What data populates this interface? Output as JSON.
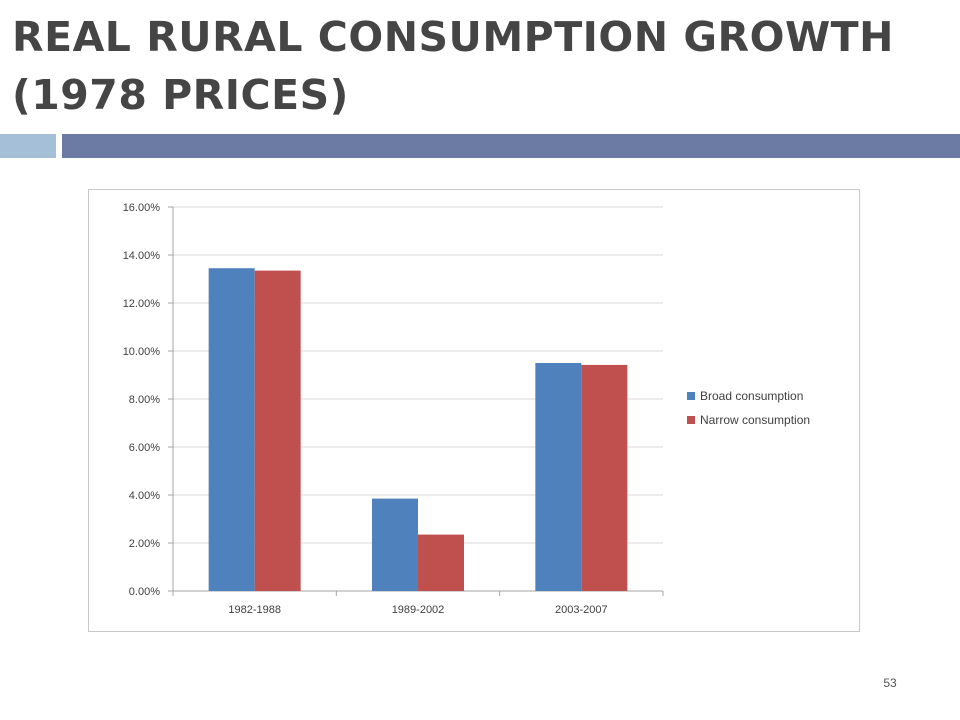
{
  "slide": {
    "title": "REAL RURAL CONSUMPTION GROWTH (1978 PRICES)",
    "page_number": "53"
  },
  "colors": {
    "accent_bar_light": "#a5bfd8",
    "accent_bar_dark": "#6c7ba4",
    "broad": "#4f81bd",
    "narrow": "#c0504d",
    "gridline": "#d9d9d9"
  },
  "chart_data": {
    "type": "bar",
    "title": "",
    "xlabel": "",
    "ylabel": "",
    "categories": [
      "1982-1988",
      "1989-2002",
      "2003-2007"
    ],
    "series": [
      {
        "name": "Broad consumption",
        "values": [
          13.45,
          3.85,
          9.5
        ],
        "color": "#4f81bd"
      },
      {
        "name": "Narrow consumption",
        "values": [
          13.35,
          2.35,
          9.42
        ],
        "color": "#c0504d"
      }
    ],
    "ylim": [
      0,
      16
    ],
    "yticks": [
      0,
      2,
      4,
      6,
      8,
      10,
      12,
      14,
      16
    ],
    "ytick_labels": [
      "0.00%",
      "2.00%",
      "4.00%",
      "6.00%",
      "8.00%",
      "10.00%",
      "12.00%",
      "14.00%",
      "16.00%"
    ],
    "grid": true,
    "legend": "right"
  }
}
